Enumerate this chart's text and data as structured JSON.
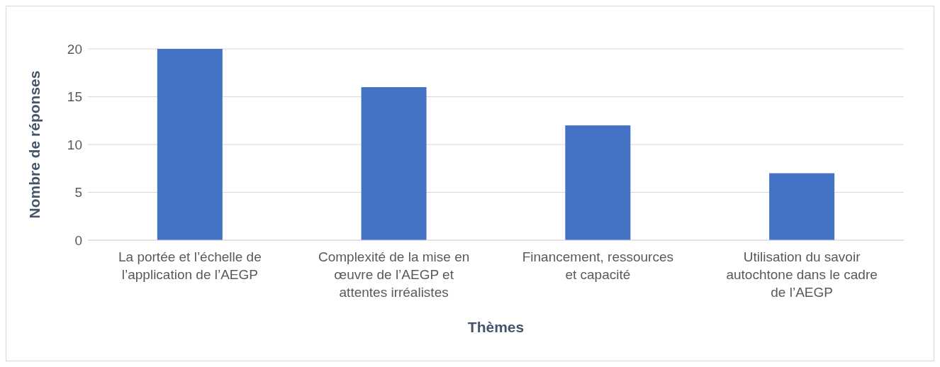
{
  "chart_data": {
    "type": "bar",
    "xlabel": "Thèmes",
    "ylabel": "Nombre de réponses",
    "categories": [
      "La portée et l’échelle de l’application de l’AEGP",
      "Complexité de la mise en œuvre de l’AEGP et attentes irréalistes",
      "Financement, ressources et capacité",
      "Utilisation du savoir autochtone dans le cadre de l’AEGP"
    ],
    "values": [
      20,
      16,
      12,
      7
    ],
    "color": "#4472c4",
    "ylim": [
      0,
      20
    ],
    "yticks": [
      0,
      5,
      10,
      15,
      20
    ],
    "grid": "y",
    "legend": false
  }
}
